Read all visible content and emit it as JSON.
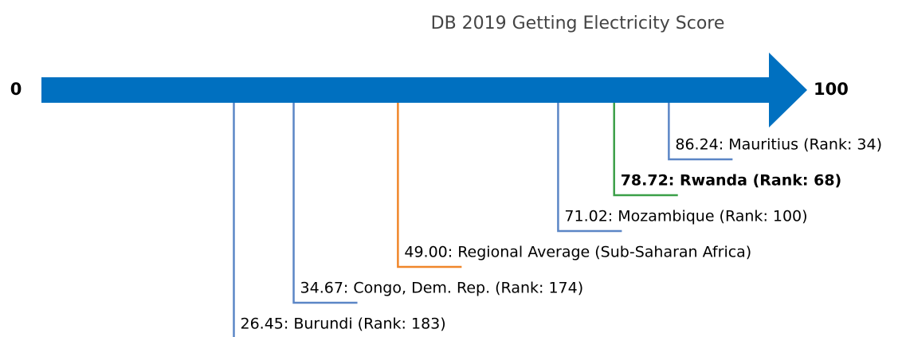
{
  "chart_data": {
    "type": "scale",
    "title": "DB 2019 Getting Electricity Score",
    "values": [
      26.45,
      34.67,
      49.0,
      71.02,
      78.72,
      86.24
    ],
    "value_labels": [
      "26.45: Burundi (Rank: 183)",
      "34.67: Congo, Dem. Rep. (Rank: 174)",
      "49.00: Regional Average (Sub-Saharan Africa)",
      "71.02: Mozambique (Rank: 100)",
      "78.72: Rwanda (Rank: 68)",
      "86.24: Mauritius (Rank: 34)"
    ],
    "colors": [
      "#5b86c6",
      "#5b86c6",
      "#f0862a",
      "#5b86c6",
      "#3b9f48",
      "#5b86c6"
    ],
    "highlight": 4,
    "arrow_color": "#0070c0",
    "xlim": [
      0,
      100
    ],
    "xticks": [
      0,
      100
    ]
  }
}
